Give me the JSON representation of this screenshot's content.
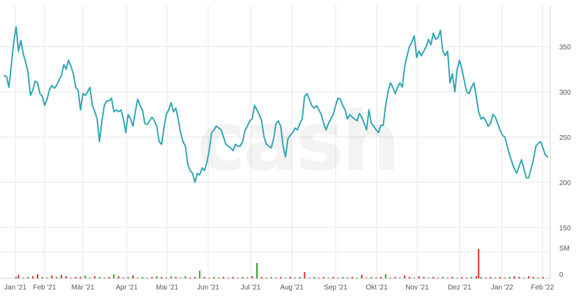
{
  "watermark": "cash",
  "chart_data": {
    "type": "line",
    "title": "",
    "xlabel": "",
    "ylabel": "",
    "grid": true,
    "y_axis_position": "right",
    "ylim": [
      150,
      390
    ],
    "y_ticks": [
      "350",
      "300",
      "250",
      "200",
      "150"
    ],
    "x_ticks": [
      "Jan '21",
      "Feb '21",
      "Mär '21",
      "Apr '21",
      "Mai '21",
      "Jun '21",
      "Jul '21",
      "Aug '21",
      "Sep '21",
      "Okt '21",
      "Nov '21",
      "Dez '21",
      "Jan '22",
      "Feb '22"
    ],
    "series": [
      {
        "color": "#2fa4b3",
        "points": [
          [
            0,
            318
          ],
          [
            2,
            317
          ],
          [
            4,
            305
          ],
          [
            6,
            330
          ],
          [
            8,
            355
          ],
          [
            10,
            372
          ],
          [
            12,
            345
          ],
          [
            14,
            357
          ],
          [
            16,
            342
          ],
          [
            18,
            333
          ],
          [
            20,
            322
          ],
          [
            22,
            296
          ],
          [
            24,
            302
          ],
          [
            26,
            312
          ],
          [
            28,
            310
          ],
          [
            30,
            298
          ],
          [
            32,
            295
          ],
          [
            34,
            285
          ],
          [
            36,
            292
          ],
          [
            38,
            302
          ],
          [
            40,
            307
          ],
          [
            42,
            304
          ],
          [
            44,
            307
          ],
          [
            46,
            313
          ],
          [
            48,
            318
          ],
          [
            50,
            330
          ],
          [
            52,
            325
          ],
          [
            54,
            335
          ],
          [
            56,
            328
          ],
          [
            58,
            320
          ],
          [
            60,
            305
          ],
          [
            62,
            302
          ],
          [
            64,
            280
          ],
          [
            66,
            298
          ],
          [
            68,
            296
          ],
          [
            70,
            300
          ],
          [
            72,
            305
          ],
          [
            74,
            285
          ],
          [
            76,
            278
          ],
          [
            78,
            270
          ],
          [
            80,
            245
          ],
          [
            82,
            268
          ],
          [
            84,
            285
          ],
          [
            86,
            290
          ],
          [
            88,
            290
          ],
          [
            90,
            293
          ],
          [
            92,
            278
          ],
          [
            94,
            280
          ],
          [
            96,
            278
          ],
          [
            98,
            280
          ],
          [
            100,
            270
          ],
          [
            102,
            255
          ],
          [
            104,
            275
          ],
          [
            106,
            270
          ],
          [
            108,
            262
          ],
          [
            110,
            278
          ],
          [
            112,
            292
          ],
          [
            114,
            285
          ],
          [
            116,
            280
          ],
          [
            118,
            265
          ],
          [
            120,
            264
          ],
          [
            122,
            268
          ],
          [
            124,
            272
          ],
          [
            126,
            268
          ],
          [
            128,
            262
          ],
          [
            130,
            245
          ],
          [
            132,
            242
          ],
          [
            134,
            260
          ],
          [
            136,
            275
          ],
          [
            138,
            280
          ],
          [
            140,
            288
          ],
          [
            142,
            278
          ],
          [
            144,
            282
          ],
          [
            146,
            270
          ],
          [
            148,
            255
          ],
          [
            150,
            245
          ],
          [
            152,
            240
          ],
          [
            154,
            220
          ],
          [
            156,
            213
          ],
          [
            158,
            210
          ],
          [
            160,
            200
          ],
          [
            162,
            210
          ],
          [
            164,
            208
          ],
          [
            166,
            216
          ],
          [
            168,
            213
          ],
          [
            170,
            222
          ],
          [
            172,
            235
          ],
          [
            174,
            255
          ],
          [
            176,
            258
          ],
          [
            178,
            262
          ],
          [
            180,
            260
          ],
          [
            182,
            258
          ],
          [
            184,
            250
          ],
          [
            186,
            242
          ],
          [
            188,
            240
          ],
          [
            190,
            238
          ],
          [
            192,
            235
          ],
          [
            194,
            242
          ],
          [
            196,
            240
          ],
          [
            198,
            240
          ],
          [
            200,
            245
          ],
          [
            202,
            257
          ],
          [
            204,
            262
          ],
          [
            206,
            268
          ],
          [
            208,
            270
          ],
          [
            210,
            285
          ],
          [
            212,
            280
          ],
          [
            214,
            275
          ],
          [
            216,
            268
          ],
          [
            218,
            250
          ],
          [
            220,
            242
          ],
          [
            222,
            240
          ],
          [
            224,
            238
          ],
          [
            226,
            248
          ],
          [
            228,
            265
          ],
          [
            230,
            268
          ],
          [
            232,
            262
          ],
          [
            234,
            240
          ],
          [
            236,
            228
          ],
          [
            238,
            248
          ],
          [
            240,
            252
          ],
          [
            242,
            255
          ],
          [
            244,
            260
          ],
          [
            246,
            258
          ],
          [
            248,
            265
          ],
          [
            250,
            270
          ],
          [
            252,
            295
          ],
          [
            254,
            298
          ],
          [
            256,
            292
          ],
          [
            258,
            285
          ],
          [
            260,
            282
          ],
          [
            262,
            285
          ],
          [
            264,
            280
          ],
          [
            266,
            275
          ],
          [
            268,
            265
          ],
          [
            270,
            258
          ],
          [
            272,
            265
          ],
          [
            274,
            270
          ],
          [
            276,
            275
          ],
          [
            278,
            285
          ],
          [
            280,
            293
          ],
          [
            282,
            292
          ],
          [
            284,
            285
          ],
          [
            286,
            280
          ],
          [
            288,
            270
          ],
          [
            290,
            275
          ],
          [
            292,
            272
          ],
          [
            294,
            270
          ],
          [
            296,
            268
          ],
          [
            298,
            276
          ],
          [
            300,
            272
          ],
          [
            302,
            265
          ],
          [
            304,
            258
          ],
          [
            306,
            280
          ],
          [
            308,
            265
          ],
          [
            310,
            262
          ],
          [
            312,
            258
          ],
          [
            314,
            255
          ],
          [
            316,
            263
          ],
          [
            318,
            263
          ],
          [
            320,
            285
          ],
          [
            322,
            300
          ],
          [
            324,
            310
          ],
          [
            326,
            305
          ],
          [
            328,
            298
          ],
          [
            330,
            305
          ],
          [
            332,
            310
          ],
          [
            334,
            305
          ],
          [
            336,
            328
          ],
          [
            338,
            340
          ],
          [
            340,
            350
          ],
          [
            342,
            355
          ],
          [
            344,
            362
          ],
          [
            346,
            338
          ],
          [
            348,
            345
          ],
          [
            350,
            340
          ],
          [
            352,
            345
          ],
          [
            354,
            350
          ],
          [
            356,
            358
          ],
          [
            358,
            352
          ],
          [
            360,
            365
          ],
          [
            362,
            358
          ],
          [
            364,
            360
          ],
          [
            366,
            368
          ],
          [
            368,
            345
          ],
          [
            370,
            340
          ],
          [
            372,
            345
          ],
          [
            374,
            310
          ],
          [
            376,
            320
          ],
          [
            378,
            300
          ],
          [
            380,
            325
          ],
          [
            382,
            335
          ],
          [
            384,
            325
          ],
          [
            386,
            312
          ],
          [
            388,
            300
          ],
          [
            390,
            298
          ],
          [
            392,
            305
          ],
          [
            394,
            310
          ],
          [
            396,
            295
          ],
          [
            398,
            278
          ],
          [
            400,
            270
          ],
          [
            402,
            272
          ],
          [
            404,
            268
          ],
          [
            406,
            262
          ],
          [
            408,
            265
          ],
          [
            410,
            275
          ],
          [
            412,
            272
          ],
          [
            414,
            265
          ],
          [
            416,
            258
          ],
          [
            418,
            252
          ],
          [
            420,
            250
          ],
          [
            422,
            240
          ],
          [
            424,
            230
          ],
          [
            426,
            222
          ],
          [
            428,
            215
          ],
          [
            430,
            210
          ],
          [
            432,
            218
          ],
          [
            434,
            225
          ],
          [
            436,
            215
          ],
          [
            438,
            205
          ],
          [
            440,
            205
          ],
          [
            442,
            215
          ],
          [
            444,
            225
          ],
          [
            446,
            240
          ],
          [
            448,
            243
          ],
          [
            450,
            245
          ],
          [
            452,
            238
          ],
          [
            454,
            230
          ],
          [
            456,
            228
          ]
        ]
      }
    ],
    "volume_labels": [
      "SM",
      "0"
    ],
    "volume_bars": [
      [
        10,
        2
      ],
      [
        12,
        5
      ],
      [
        16,
        1
      ],
      [
        20,
        2
      ],
      [
        24,
        3
      ],
      [
        28,
        6
      ],
      [
        32,
        2
      ],
      [
        36,
        1
      ],
      [
        40,
        4
      ],
      [
        44,
        2
      ],
      [
        48,
        5
      ],
      [
        52,
        3
      ],
      [
        56,
        1
      ],
      [
        60,
        2
      ],
      [
        64,
        2
      ],
      [
        68,
        4
      ],
      [
        72,
        1
      ],
      [
        76,
        3
      ],
      [
        80,
        2
      ],
      [
        84,
        1
      ],
      [
        88,
        2
      ],
      [
        92,
        6
      ],
      [
        96,
        3
      ],
      [
        100,
        1
      ],
      [
        104,
        2
      ],
      [
        108,
        4
      ],
      [
        112,
        1
      ],
      [
        116,
        2
      ],
      [
        120,
        1
      ],
      [
        124,
        2
      ],
      [
        128,
        3
      ],
      [
        132,
        2
      ],
      [
        136,
        1
      ],
      [
        140,
        3
      ],
      [
        144,
        2
      ],
      [
        148,
        1
      ],
      [
        152,
        3
      ],
      [
        156,
        1
      ],
      [
        160,
        2
      ],
      [
        164,
        11
      ],
      [
        168,
        2
      ],
      [
        172,
        1
      ],
      [
        176,
        2
      ],
      [
        180,
        1
      ],
      [
        184,
        2
      ],
      [
        188,
        1
      ],
      [
        192,
        2
      ],
      [
        196,
        1
      ],
      [
        200,
        2
      ],
      [
        204,
        1
      ],
      [
        208,
        3
      ],
      [
        212,
        22
      ],
      [
        216,
        2
      ],
      [
        220,
        1
      ],
      [
        224,
        2
      ],
      [
        228,
        1
      ],
      [
        232,
        2
      ],
      [
        236,
        1
      ],
      [
        240,
        2
      ],
      [
        244,
        1
      ],
      [
        248,
        2
      ],
      [
        252,
        9
      ],
      [
        256,
        1
      ],
      [
        260,
        2
      ],
      [
        264,
        1
      ],
      [
        268,
        2
      ],
      [
        272,
        1
      ],
      [
        276,
        2
      ],
      [
        280,
        1
      ],
      [
        284,
        2
      ],
      [
        288,
        1
      ],
      [
        292,
        2
      ],
      [
        296,
        1
      ],
      [
        300,
        5
      ],
      [
        304,
        1
      ],
      [
        308,
        2
      ],
      [
        312,
        1
      ],
      [
        316,
        2
      ],
      [
        320,
        6
      ],
      [
        324,
        1
      ],
      [
        328,
        2
      ],
      [
        332,
        1
      ],
      [
        336,
        4
      ],
      [
        340,
        2
      ],
      [
        344,
        1
      ],
      [
        348,
        3
      ],
      [
        352,
        2
      ],
      [
        356,
        1
      ],
      [
        360,
        2
      ],
      [
        364,
        1
      ],
      [
        368,
        2
      ],
      [
        372,
        1
      ],
      [
        376,
        2
      ],
      [
        380,
        1
      ],
      [
        384,
        2
      ],
      [
        388,
        1
      ],
      [
        392,
        2
      ],
      [
        396,
        3
      ],
      [
        398,
        42
      ],
      [
        400,
        2
      ],
      [
        404,
        1
      ],
      [
        408,
        2
      ],
      [
        412,
        1
      ],
      [
        416,
        2
      ],
      [
        420,
        1
      ],
      [
        424,
        2
      ],
      [
        428,
        3
      ],
      [
        432,
        2
      ],
      [
        436,
        1
      ],
      [
        440,
        3
      ],
      [
        444,
        2
      ],
      [
        448,
        1
      ],
      [
        452,
        2
      ]
    ],
    "volume_colors": {
      "up": "#2ca02c",
      "down": "#d62728"
    }
  }
}
